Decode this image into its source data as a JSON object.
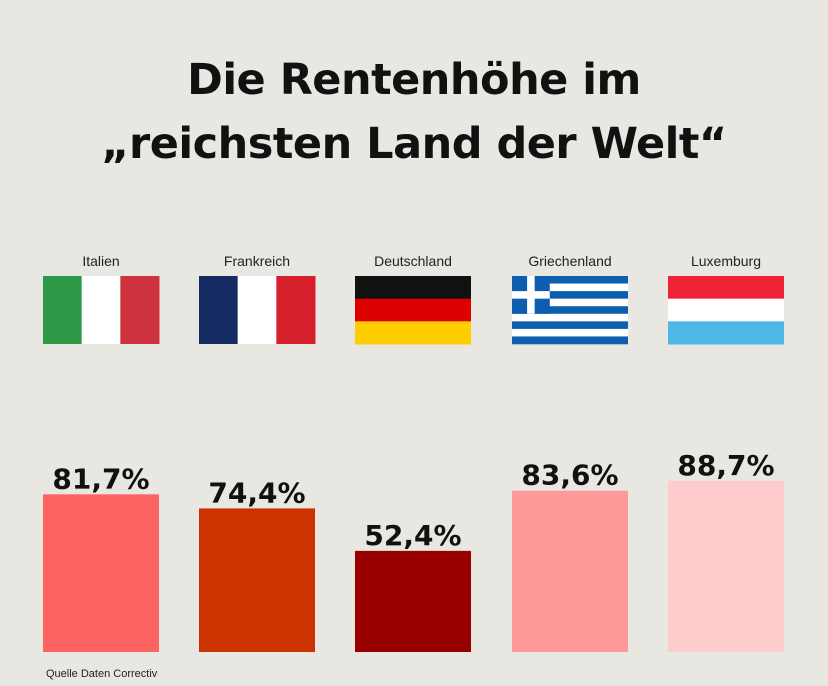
{
  "chart_data": {
    "type": "bar",
    "title": "Die Rentenhöhe im „reichsten Land der Welt“",
    "title_lines": [
      "Die Rentenhöhe im",
      "„reichsten Land der Welt“"
    ],
    "categories": [
      "Italien",
      "Frankreich",
      "Deutschland",
      "Griechenland",
      "Luxemburg"
    ],
    "values": [
      81.7,
      74.4,
      52.4,
      83.6,
      88.7
    ],
    "value_labels": [
      "81,7%",
      "74,4%",
      "52,4%",
      "83,6%",
      "88,7%"
    ],
    "bar_colors": [
      "#fe6363",
      "#cc3300",
      "#990000",
      "#fe9a9a",
      "#fecccc"
    ],
    "flags": [
      "italy-flag-icon",
      "france-flag-icon",
      "germany-flag-icon",
      "greece-flag-icon",
      "luxembourg-flag-icon"
    ],
    "ylim": [
      0,
      100
    ],
    "grid": false,
    "legend": "none",
    "xlabel": "",
    "ylabel": ""
  },
  "source": "Quelle Daten Correctiv"
}
